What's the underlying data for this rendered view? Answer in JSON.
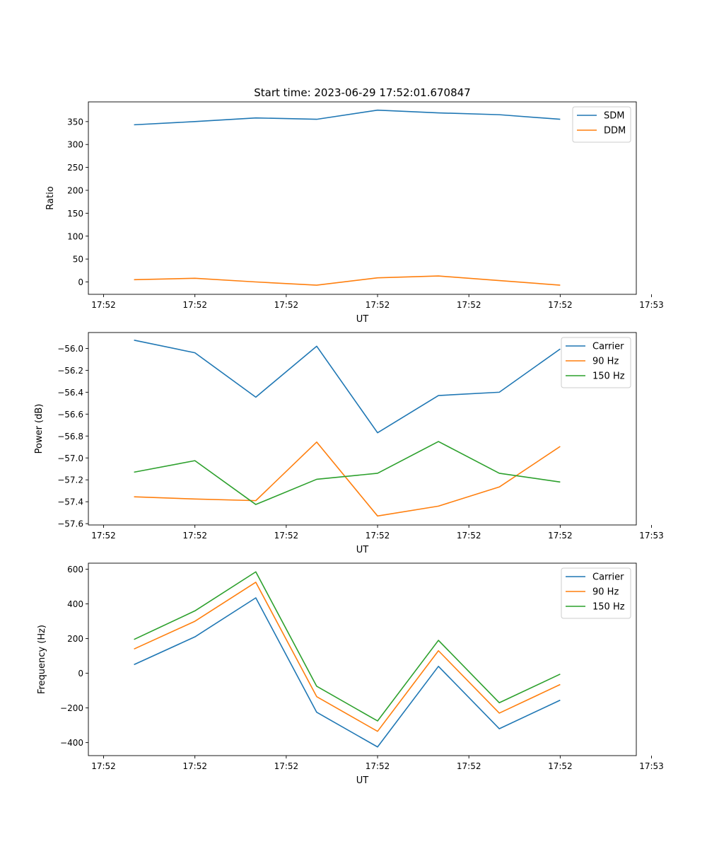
{
  "chart_data": [
    {
      "type": "line",
      "title": "Start time: 2023-06-29 17:52:01.670847",
      "xlabel": "UT",
      "ylabel": "Ratio",
      "x": [
        1,
        2,
        3,
        4,
        5,
        6,
        7,
        8
      ],
      "xlim": [
        0.25,
        9.25
      ],
      "xticks": [
        0.5,
        2,
        3.5,
        5,
        6.5,
        8,
        9.5
      ],
      "xtick_labels": [
        "17:52",
        "17:52",
        "17:52",
        "17:52",
        "17:52",
        "17:52",
        "17:53"
      ],
      "ylim": [
        -27,
        393
      ],
      "yticks": [
        0,
        50,
        100,
        150,
        200,
        250,
        300,
        350
      ],
      "ytick_labels": [
        "0",
        "50",
        "100",
        "150",
        "200",
        "250",
        "300",
        "350"
      ],
      "legend": "top-right",
      "grid": false,
      "series": [
        {
          "name": "SDM",
          "color": "#1f77b4",
          "values": [
            343,
            350,
            358,
            355,
            375,
            369,
            365,
            355
          ]
        },
        {
          "name": "DDM",
          "color": "#ff7f0e",
          "values": [
            5,
            8,
            0,
            -7,
            9,
            13,
            3,
            -7
          ]
        }
      ]
    },
    {
      "type": "line",
      "xlabel": "UT",
      "ylabel": "Power (dB)",
      "x": [
        1,
        2,
        3,
        4,
        5,
        6,
        7,
        8
      ],
      "xlim": [
        0.25,
        9.25
      ],
      "xticks": [
        0.5,
        2,
        3.5,
        5,
        6.5,
        8,
        9.5
      ],
      "xtick_labels": [
        "17:52",
        "17:52",
        "17:52",
        "17:52",
        "17:52",
        "17:52",
        "17:53"
      ],
      "ylim": [
        -57.612,
        -55.855
      ],
      "yticks": [
        -57.6,
        -57.4,
        -57.2,
        -57.0,
        -56.8,
        -56.6,
        -56.4,
        -56.2,
        -56.0
      ],
      "ytick_labels": [
        "−57.6",
        "−57.4",
        "−57.2",
        "−57.0",
        "−56.8",
        "−56.6",
        "−56.4",
        "−56.2",
        "−56.0"
      ],
      "legend": "top-right",
      "grid": false,
      "series": [
        {
          "name": "Carrier",
          "color": "#1f77b4",
          "values": [
            -55.925,
            -56.04,
            -56.445,
            -55.98,
            -56.77,
            -56.43,
            -56.4,
            -56.005
          ]
        },
        {
          "name": "90 Hz",
          "color": "#ff7f0e",
          "values": [
            -57.355,
            -57.375,
            -57.39,
            -56.855,
            -57.53,
            -57.44,
            -57.265,
            -56.895
          ]
        },
        {
          "name": "150 Hz",
          "color": "#2ca02c",
          "values": [
            -57.13,
            -57.025,
            -57.425,
            -57.195,
            -57.14,
            -56.85,
            -57.14,
            -57.22
          ]
        }
      ]
    },
    {
      "type": "line",
      "xlabel": "UT",
      "ylabel": "Frequency (Hz)",
      "x": [
        1,
        2,
        3,
        4,
        5,
        6,
        7,
        8
      ],
      "xlim": [
        0.25,
        9.25
      ],
      "xticks": [
        0.5,
        2,
        3.5,
        5,
        6.5,
        8,
        9.5
      ],
      "xtick_labels": [
        "17:52",
        "17:52",
        "17:52",
        "17:52",
        "17:52",
        "17:52",
        "17:53"
      ],
      "ylim": [
        -475,
        635
      ],
      "yticks": [
        -400,
        -200,
        0,
        200,
        400,
        600
      ],
      "ytick_labels": [
        "−400",
        "−200",
        "0",
        "200",
        "400",
        "600"
      ],
      "legend": "top-right",
      "grid": false,
      "series": [
        {
          "name": "Carrier",
          "color": "#1f77b4",
          "values": [
            50,
            210,
            435,
            -225,
            -425,
            40,
            -320,
            -155
          ]
        },
        {
          "name": "90 Hz",
          "color": "#ff7f0e",
          "values": [
            140,
            300,
            525,
            -135,
            -335,
            130,
            -230,
            -65
          ]
        },
        {
          "name": "150 Hz",
          "color": "#2ca02c",
          "values": [
            195,
            360,
            585,
            -75,
            -275,
            190,
            -170,
            -5
          ]
        }
      ]
    }
  ]
}
